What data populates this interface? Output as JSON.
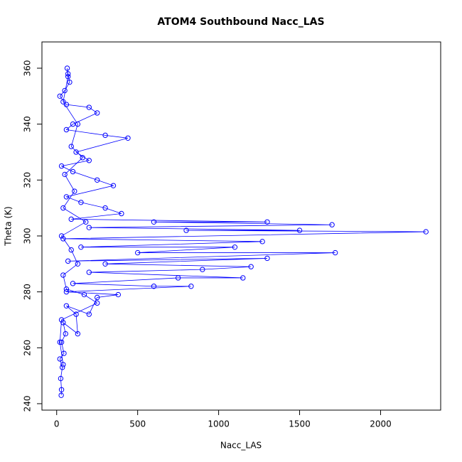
{
  "chart_data": {
    "type": "line",
    "title": "ATOM4 Southbound Nacc_LAS",
    "x_label": "Nacc_LAS",
    "y_label": "Theta (K)",
    "color": "#0000ff",
    "markers": true,
    "x": [
      28,
      30,
      25,
      35,
      20,
      45,
      30,
      55,
      40,
      130,
      120,
      60,
      200,
      250,
      380,
      60,
      830,
      600,
      100,
      750,
      1150,
      200,
      900,
      1200,
      300,
      1300,
      70,
      1720,
      500,
      1100,
      150,
      1270,
      40,
      2280,
      800,
      1500,
      200,
      1700,
      600,
      1300,
      90,
      400,
      300,
      150,
      60,
      350,
      250,
      100,
      30,
      200,
      120,
      440,
      300,
      60,
      100,
      250,
      200,
      60,
      20,
      50,
      80,
      70,
      65,
      70,
      40,
      130,
      90,
      160,
      50,
      110,
      40,
      180,
      30,
      90,
      130,
      40,
      60,
      170,
      250,
      30,
      20,
      40
    ],
    "values": [
      243,
      245,
      249,
      253,
      256,
      258,
      262,
      265,
      269,
      265,
      272,
      275,
      272,
      278,
      279,
      280,
      282,
      282,
      283,
      285,
      285,
      287,
      288,
      289,
      290,
      292,
      291,
      294,
      294,
      296,
      296,
      298,
      299,
      301.5,
      302,
      302,
      303,
      304,
      305,
      305,
      306,
      308,
      310,
      312,
      314,
      318,
      320,
      323,
      325,
      327,
      330,
      335,
      336,
      338,
      340,
      344,
      346,
      347,
      350,
      352,
      355,
      358,
      360,
      357,
      348,
      340,
      332,
      328,
      322,
      316,
      310,
      305,
      300,
      295,
      290,
      286,
      281,
      279,
      276,
      270,
      262,
      254
    ],
    "xlim": [
      -91,
      2371
    ],
    "ylim": [
      237.7,
      369.4
    ],
    "xticks": [
      0,
      500,
      1000,
      1500,
      2000
    ],
    "yticks": [
      240,
      260,
      280,
      300,
      320,
      340,
      360
    ]
  }
}
